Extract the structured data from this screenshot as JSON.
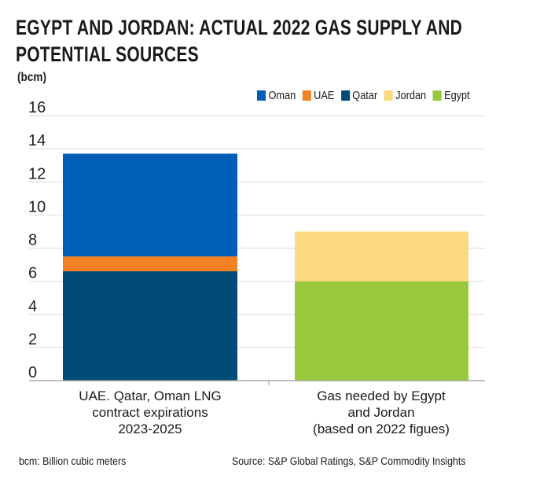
{
  "title_lines": [
    "EGYPT AND JORDAN: ACTUAL 2022 GAS SUPPLY AND",
    "POTENTIAL SOURCES"
  ],
  "footnote": "bcm: Billion cubic meters",
  "source": "Source: S&P Global Ratings, S&P Commodity Insights",
  "chart_data": {
    "type": "bar",
    "stacked": true,
    "ylabel": "(bcm)",
    "ylim": [
      0,
      16
    ],
    "yticks": [
      0,
      2,
      4,
      6,
      8,
      10,
      12,
      14,
      16
    ],
    "grid": true,
    "legend_position": "top-right",
    "categories": [
      [
        "UAE. Qatar, Oman LNG",
        "contract expirations",
        "2023-2025"
      ],
      [
        "Gas needed by Egypt",
        "and Jordan",
        "(based on 2022 figues)"
      ]
    ],
    "series": [
      {
        "name": "Qatar",
        "color": "#004c76",
        "values": [
          6.6,
          0
        ]
      },
      {
        "name": "UAE",
        "color": "#f28024",
        "values": [
          0.9,
          0
        ]
      },
      {
        "name": "Oman",
        "color": "#005eb8",
        "values": [
          6.2,
          0
        ]
      },
      {
        "name": "Egypt",
        "color": "#9ac83c",
        "values": [
          0,
          6.0
        ]
      },
      {
        "name": "Jordan",
        "color": "#fcd980",
        "values": [
          0,
          3.0
        ]
      }
    ],
    "legend_order": [
      "Oman",
      "UAE",
      "Qatar",
      "Jordan",
      "Egypt"
    ]
  }
}
